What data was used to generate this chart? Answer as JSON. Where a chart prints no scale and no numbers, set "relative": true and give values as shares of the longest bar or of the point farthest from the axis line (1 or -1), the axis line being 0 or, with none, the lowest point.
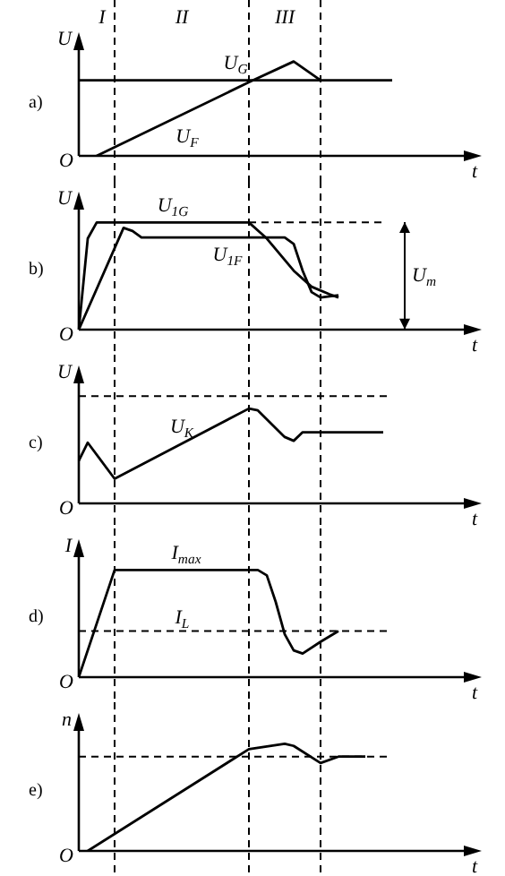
{
  "chart_data": [
    {
      "type": "line",
      "title": "a)",
      "ylabel": "U",
      "xlabel": "t",
      "relative": true,
      "legend": false,
      "marker": "none",
      "categories": [
        null,
        null,
        null,
        null,
        null,
        null,
        null,
        null,
        null,
        null,
        null,
        null,
        null,
        null,
        null,
        null,
        null,
        null,
        null,
        null,
        null,
        null,
        null,
        null,
        null,
        null,
        null,
        null,
        null,
        null,
        null,
        null,
        null,
        null,
        null,
        null,
        null,
        null,
        null,
        null,
        null,
        null,
        null,
        null
      ],
      "series": [
        {
          "name": "U$_{G}$",
          "color": "#000000",
          "values": [
            0.8,
            null,
            null,
            null,
            null,
            null,
            null,
            null,
            null,
            null,
            null,
            null,
            null,
            null,
            null,
            null,
            null,
            null,
            null,
            null,
            null,
            null,
            null,
            null,
            null,
            null,
            null,
            null,
            null,
            null,
            null,
            null,
            null,
            null,
            null,
            0.8,
            null,
            null,
            null,
            null,
            null,
            null,
            null,
            null
          ]
        },
        {
          "name": "U$_{F}$",
          "color": "#000000",
          "values": [
            null,
            null,
            0,
            null,
            null,
            null,
            null,
            null,
            null,
            null,
            null,
            null,
            null,
            null,
            null,
            null,
            null,
            null,
            null,
            0.78,
            null,
            null,
            null,
            null,
            1,
            null,
            null,
            0.8,
            null,
            null,
            null,
            null,
            null,
            null,
            null,
            null,
            null,
            null,
            null,
            null,
            null,
            null,
            null,
            null
          ]
        }
      ],
      "grid": "x",
      "annotations": [
        "O",
        "I",
        "II",
        "III"
      ]
    },
    {
      "type": "line",
      "title": "b)",
      "ylabel": "U",
      "xlabel": "t",
      "relative": true,
      "legend": false,
      "marker": "none",
      "categories": [
        null,
        null,
        null,
        null,
        null,
        null,
        null,
        null,
        null,
        null,
        null,
        null,
        null,
        null,
        null,
        null,
        null,
        null,
        null,
        null,
        null,
        null,
        null,
        null,
        null,
        null,
        null,
        null,
        null,
        null,
        null,
        null,
        null,
        null,
        null,
        null,
        null,
        null,
        null,
        null,
        null,
        null,
        null,
        null
      ],
      "series": [
        {
          "name": "U$_{1G}$",
          "color": "#000000",
          "values": [
            0,
            0.85,
            1,
            null,
            null,
            null,
            null,
            null,
            null,
            null,
            null,
            null,
            null,
            null,
            null,
            null,
            null,
            null,
            null,
            1,
            null,
            0.85,
            null,
            null,
            0.55,
            null,
            0.4,
            null,
            0.33,
            0.3,
            null,
            null,
            null,
            null,
            null,
            null,
            null,
            null,
            null,
            null,
            null,
            null,
            null,
            null
          ]
        },
        {
          "name": "U$_{1F}$",
          "color": "#000000",
          "values": [
            0,
            null,
            null,
            null,
            null,
            0.95,
            0.92,
            0.86,
            null,
            null,
            null,
            null,
            null,
            null,
            null,
            null,
            null,
            null,
            null,
            null,
            null,
            null,
            null,
            0.86,
            0.8,
            0.55,
            0.35,
            0.3,
            null,
            0.32,
            null,
            null,
            null,
            null,
            null,
            null,
            null,
            null,
            null,
            null,
            null,
            null,
            null,
            null
          ]
        }
      ],
      "grid": "x",
      "ref_lines": [
        {
          "axis": "y",
          "value": 1
        }
      ],
      "annotations": [
        "O",
        "U$_{m}$"
      ]
    },
    {
      "type": "line",
      "title": "c)",
      "ylabel": "U",
      "xlabel": "t",
      "relative": true,
      "legend": false,
      "marker": "none",
      "categories": [
        null,
        null,
        null,
        null,
        null,
        null,
        null,
        null,
        null,
        null,
        null,
        null,
        null,
        null,
        null,
        null,
        null,
        null,
        null,
        null,
        null,
        null,
        null,
        null,
        null,
        null,
        null,
        null,
        null,
        null,
        null,
        null,
        null,
        null,
        null,
        null,
        null,
        null,
        null,
        null,
        null,
        null,
        null,
        null
      ],
      "series": [
        {
          "name": "U$_{K}$",
          "color": "#000000",
          "values": [
            0.45,
            0.64,
            null,
            null,
            0.26,
            null,
            null,
            null,
            null,
            null,
            null,
            null,
            null,
            null,
            null,
            null,
            null,
            null,
            null,
            1,
            0.98,
            null,
            null,
            0.7,
            0.66,
            0.75,
            null,
            null,
            0.75,
            null,
            null,
            null,
            null,
            null,
            0.75,
            null,
            null,
            null,
            null,
            null,
            null,
            null,
            null,
            null
          ]
        }
      ],
      "grid": "x",
      "ref_lines": [
        {
          "axis": "y",
          "value": 1.13
        }
      ],
      "annotations": [
        "O"
      ]
    },
    {
      "type": "line",
      "title": "d)",
      "ylabel": "I",
      "xlabel": "t",
      "relative": true,
      "legend": false,
      "marker": "none",
      "categories": [
        null,
        null,
        null,
        null,
        null,
        null,
        null,
        null,
        null,
        null,
        null,
        null,
        null,
        null,
        null,
        null,
        null,
        null,
        null,
        null,
        null,
        null,
        null,
        null,
        null,
        null,
        null,
        null,
        null,
        null,
        null,
        null,
        null,
        null,
        null,
        null,
        null,
        null,
        null,
        null,
        null,
        null,
        null,
        null
      ],
      "series": [
        {
          "name": "I$_{max}$",
          "color": "#000000",
          "values": [
            0,
            null,
            null,
            null,
            1,
            null,
            null,
            null,
            null,
            null,
            null,
            null,
            null,
            null,
            null,
            null,
            null,
            null,
            null,
            null,
            1,
            0.95,
            0.7,
            0.4,
            0.25,
            0.22,
            null,
            0.33,
            null,
            0.43,
            null,
            null,
            null,
            null,
            null,
            null,
            null,
            null,
            null,
            null,
            null,
            null,
            null,
            null
          ]
        }
      ],
      "grid": "x",
      "ref_lines": [
        {
          "axis": "y",
          "value": 0.43,
          "label": "I$_{L}$"
        }
      ],
      "annotations": [
        "O"
      ]
    },
    {
      "type": "line",
      "title": "e)",
      "ylabel": "n",
      "xlabel": "t",
      "relative": true,
      "legend": false,
      "marker": "none",
      "categories": [
        null,
        null,
        null,
        null,
        null,
        null,
        null,
        null,
        null,
        null,
        null,
        null,
        null,
        null,
        null,
        null,
        null,
        null,
        null,
        null,
        null,
        null,
        null,
        null,
        null,
        null,
        null,
        null,
        null,
        null,
        null,
        null,
        null,
        null,
        null,
        null,
        null,
        null,
        null,
        null,
        null,
        null,
        null,
        null
      ],
      "series": [
        {
          "color": "#000000",
          "values": [
            null,
            0,
            null,
            null,
            null,
            null,
            null,
            null,
            null,
            null,
            null,
            null,
            null,
            null,
            null,
            null,
            null,
            null,
            null,
            0.95,
            null,
            null,
            null,
            1,
            0.98,
            null,
            null,
            0.82,
            null,
            0.88,
            null,
            null,
            0.88,
            null,
            null,
            null,
            null,
            null,
            null,
            null,
            null,
            null,
            null,
            null
          ]
        }
      ],
      "grid": "x",
      "ref_lines": [
        {
          "axis": "y",
          "value": 0.88
        }
      ],
      "annotations": [
        "O"
      ]
    }
  ]
}
